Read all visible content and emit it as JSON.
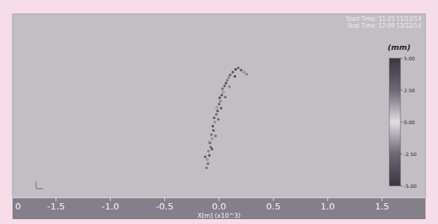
{
  "chart_data": {
    "type": "scatter",
    "title_lines": [
      "Start Time: 11:25 11/12/14",
      "Stop Time: 17:09 13/12/14"
    ],
    "x_label": "X[m] (x10^3)",
    "corner_label": "0",
    "x": [
      -0.115,
      -0.102,
      -0.108,
      -0.089,
      -0.096,
      -0.076,
      -0.083,
      -0.064,
      -0.07,
      -0.051,
      -0.057,
      -0.038,
      -0.045,
      -0.025,
      -0.013,
      -0.019,
      0.0,
      0.013,
      0.006,
      0.025,
      0.038,
      0.032,
      0.051,
      0.064,
      0.076,
      0.089,
      0.102,
      0.127,
      0.153,
      0.178,
      0.204,
      0.229,
      0.255,
      -0.127,
      -0.064,
      -0.032,
      -0.089,
      -0.006,
      0.019,
      0.057,
      0.096,
      0.146
    ],
    "values": [
      0.162,
      0.185,
      0.208,
      0.23,
      0.253,
      0.275,
      0.298,
      0.321,
      0.343,
      0.366,
      0.389,
      0.411,
      0.434,
      0.453,
      0.472,
      0.491,
      0.509,
      0.525,
      0.543,
      0.558,
      0.574,
      0.592,
      0.608,
      0.623,
      0.638,
      0.653,
      0.668,
      0.683,
      0.698,
      0.706,
      0.694,
      0.683,
      0.672,
      0.223,
      0.264,
      0.336,
      0.302,
      0.426,
      0.487,
      0.547,
      0.604,
      0.66
    ],
    "displacement": [
      1.5,
      -2.0,
      0.8,
      3.0,
      -1.2,
      2.2,
      -3.1,
      0.5,
      1.8,
      -2.6,
      4.0,
      -0.7,
      2.7,
      -1.9,
      3.4,
      0.2,
      -2.3,
      1.1,
      -3.6,
      2.9,
      -0.4,
      1.6,
      -2.8,
      3.8,
      -1.5,
      0.9,
      2.4,
      -3.3,
      4.2,
      -2.1,
      3.1,
      -0.9,
      1.3,
      -2.5,
      3.5,
      -1.7,
      0.6,
      2.0,
      -3.0,
      1.9,
      -1.1,
      4.5
    ],
    "xlim": [
      -1.9,
      1.9
    ],
    "ylim": [
      0,
      1
    ],
    "xticks": [
      -1.5,
      {
        "value": -1,
        "label": "-1.0"
      },
      -0.5,
      {
        "value": 0,
        "label": "0.0"
      },
      0.5,
      {
        "value": 1,
        "label": "1.0"
      },
      1.5
    ],
    "tick_labels": "x",
    "grid": false,
    "marker": "dot",
    "colorbar_label": "(mm)",
    "colorbar_range": [
      -5,
      5
    ],
    "colorbar_ticks": [
      {
        "value": 5,
        "label": "5.00"
      },
      {
        "value": 2.5,
        "label": "2.50"
      },
      {
        "value": 0,
        "label": "0.00"
      },
      {
        "value": -2.5,
        "label": "-2.50"
      },
      {
        "value": -5,
        "label": "-5.00"
      }
    ]
  }
}
